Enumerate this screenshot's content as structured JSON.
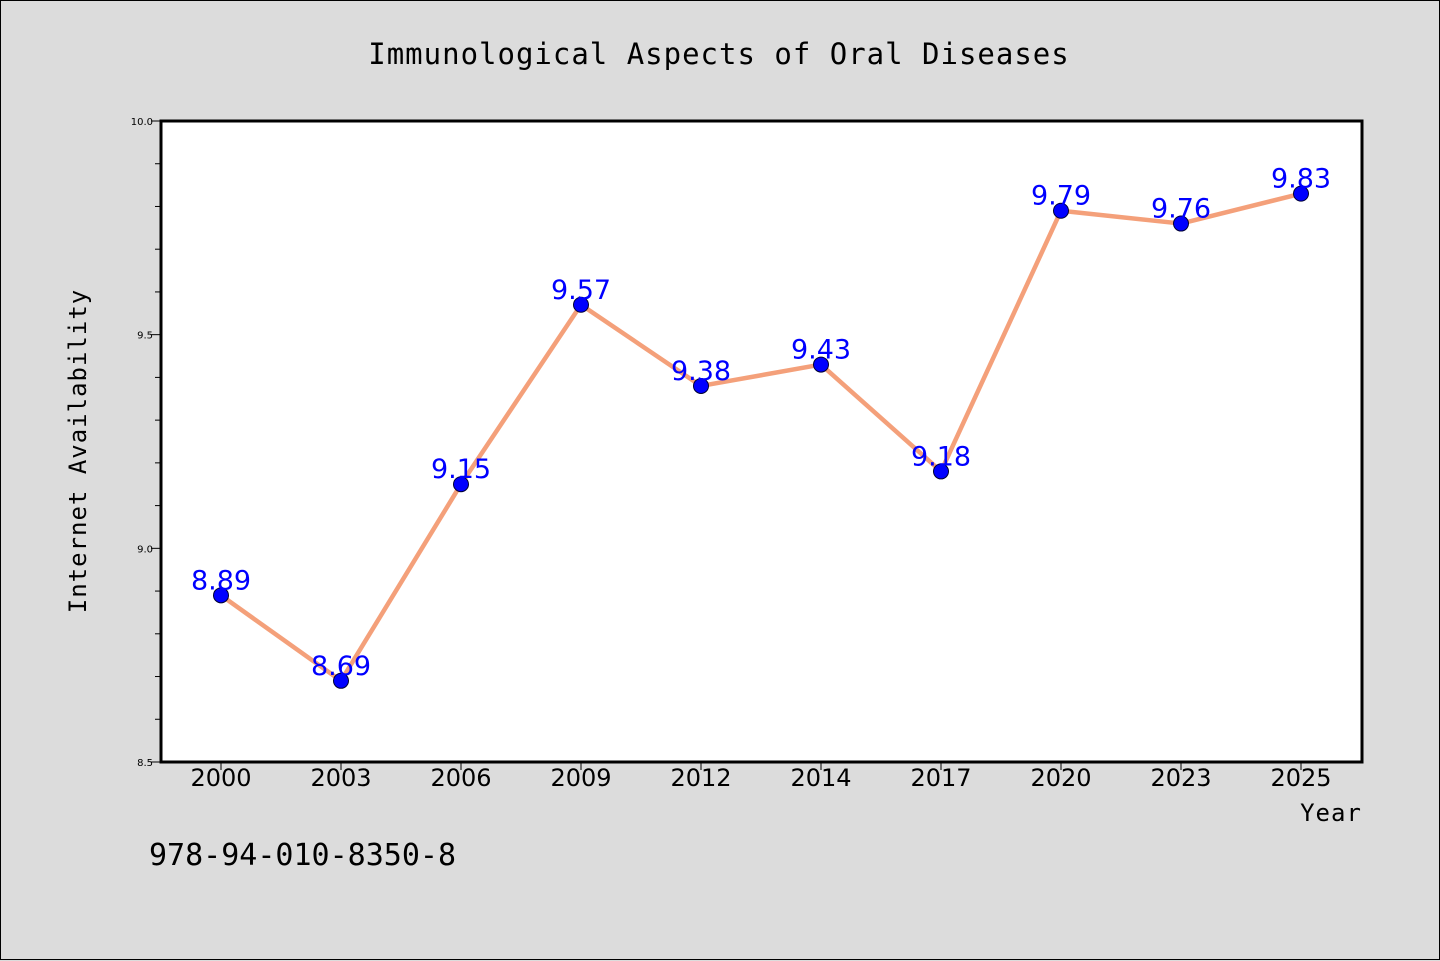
{
  "chart_data": {
    "type": "line",
    "title": "Immunological Aspects of Oral Diseases",
    "xlabel": "Year",
    "ylabel": "Internet Availability",
    "categories": [
      "2000",
      "2003",
      "2006",
      "2009",
      "2012",
      "2014",
      "2017",
      "2020",
      "2023",
      "2025"
    ],
    "series": [
      {
        "values": [
          8.89,
          8.69,
          9.15,
          9.57,
          9.38,
          9.43,
          9.18,
          9.79,
          9.76,
          9.83
        ],
        "labels": [
          "8.89",
          "8.69",
          "9.15",
          "9.57",
          "9.38",
          "9.43",
          "9.18",
          "9.79",
          "9.76",
          "9.83"
        ]
      }
    ],
    "ylim": [
      8.5,
      10.0
    ],
    "yticks": [
      "8.5",
      "9.0",
      "9.5",
      "10.0"
    ],
    "grid": false,
    "colors": {
      "line": "#f4a07a",
      "marker": "#0000ff",
      "label": "#0000ff"
    }
  },
  "footer": {
    "isbn": "978-94-010-8350-8"
  }
}
